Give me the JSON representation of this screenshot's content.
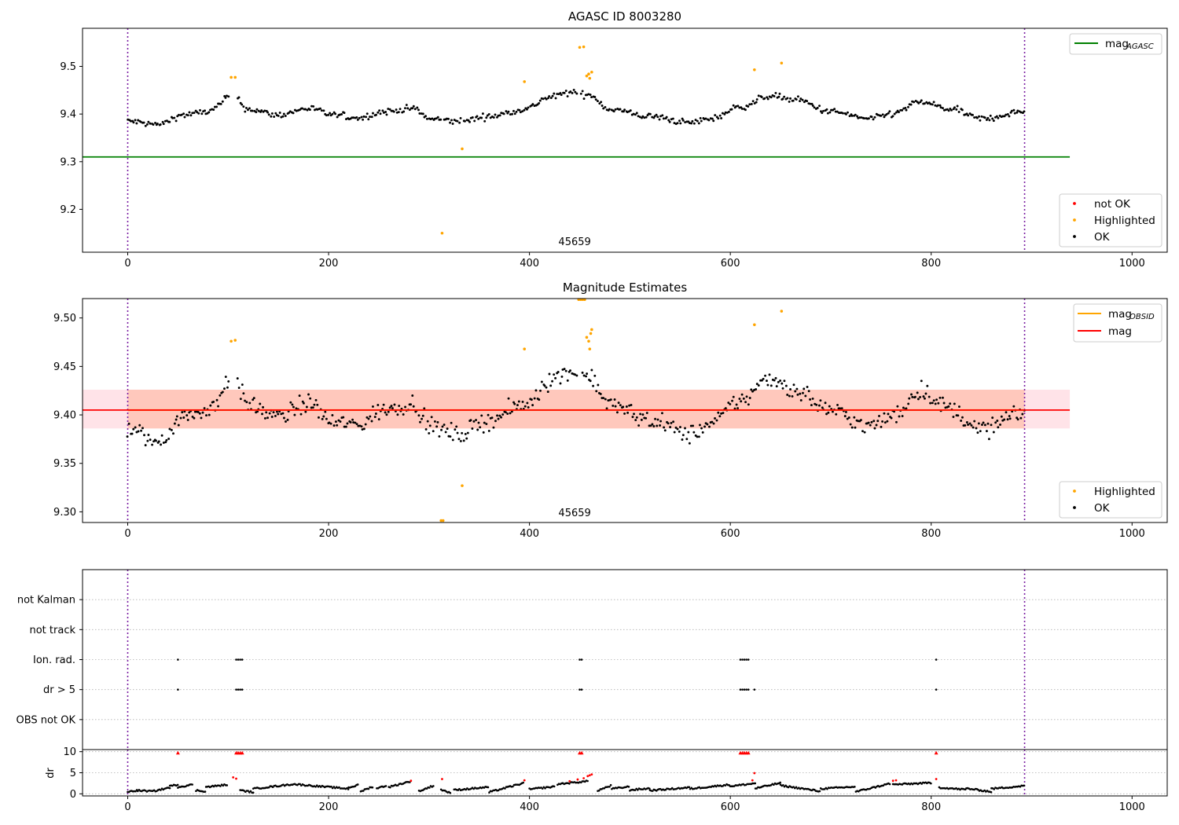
{
  "chart_data": [
    {
      "type": "scatter",
      "title": "AGASC ID 8003280",
      "xlim": [
        -45,
        1035
      ],
      "ylim": [
        9.11,
        9.58
      ],
      "x_ticks": [
        0,
        200,
        400,
        600,
        800,
        1000
      ],
      "y_ticks": [
        9.2,
        9.3,
        9.4,
        9.5
      ],
      "y_tick_labels": [
        "9.2",
        "9.3",
        "9.4",
        "9.5"
      ],
      "obsid_label": "45659",
      "obsid_label_x": 445,
      "vertical_lines_x": [
        0,
        893
      ],
      "mag_agasc": {
        "value": 9.31,
        "x_range": [
          -45,
          938
        ],
        "color": "#008000"
      },
      "legend_lines": [
        {
          "label": "mag",
          "subscript": "AGASC",
          "color": "#008000"
        }
      ],
      "legend_points": [
        {
          "label": "not OK",
          "color": "#ff0000"
        },
        {
          "label": "Highlighted",
          "color": "#ffa500"
        },
        {
          "label": "OK",
          "color": "#000000"
        }
      ],
      "highlighted_points": [
        [
          103,
          9.477
        ],
        [
          107,
          9.477
        ],
        [
          395,
          9.468
        ],
        [
          450,
          9.54
        ],
        [
          454,
          9.541
        ],
        [
          457,
          9.48
        ],
        [
          459,
          9.484
        ],
        [
          460,
          9.475
        ],
        [
          462,
          9.488
        ],
        [
          624,
          9.493
        ],
        [
          651,
          9.507
        ],
        [
          333,
          9.327
        ],
        [
          313,
          9.15
        ]
      ],
      "ok_series": {
        "x_start": 0,
        "x_end": 893,
        "step": 1.5,
        "anchors": [
          [
            0,
            9.385
          ],
          [
            30,
            9.378
          ],
          [
            55,
            9.398
          ],
          [
            80,
            9.405
          ],
          [
            105,
            9.44
          ],
          [
            120,
            9.41
          ],
          [
            150,
            9.398
          ],
          [
            180,
            9.412
          ],
          [
            205,
            9.398
          ],
          [
            230,
            9.392
          ],
          [
            255,
            9.405
          ],
          [
            285,
            9.412
          ],
          [
            300,
            9.39
          ],
          [
            330,
            9.385
          ],
          [
            360,
            9.395
          ],
          [
            395,
            9.41
          ],
          [
            420,
            9.435
          ],
          [
            440,
            9.445
          ],
          [
            460,
            9.44
          ],
          [
            480,
            9.41
          ],
          [
            520,
            9.395
          ],
          [
            560,
            9.382
          ],
          [
            580,
            9.39
          ],
          [
            610,
            9.415
          ],
          [
            640,
            9.438
          ],
          [
            665,
            9.43
          ],
          [
            700,
            9.405
          ],
          [
            740,
            9.39
          ],
          [
            760,
            9.4
          ],
          [
            790,
            9.425
          ],
          [
            820,
            9.41
          ],
          [
            850,
            9.39
          ],
          [
            893,
            9.405
          ]
        ],
        "noise": 0.0085,
        "gaps": [
          [
            102,
            109
          ],
          [
            313,
            313.8
          ],
          [
            333,
            333.8
          ],
          [
            448,
            451
          ]
        ],
        "color": "#000000"
      }
    },
    {
      "type": "scatter",
      "title": "Magnitude Estimates",
      "xlim": [
        -45,
        1035
      ],
      "ylim": [
        9.289,
        9.52
      ],
      "x_ticks": [
        0,
        200,
        400,
        600,
        800,
        1000
      ],
      "y_ticks": [
        9.3,
        9.35,
        9.4,
        9.45,
        9.5
      ],
      "y_tick_labels": [
        "9.30",
        "9.35",
        "9.40",
        "9.45",
        "9.50"
      ],
      "obsid_label": "45659",
      "obsid_label_x": 445,
      "vertical_lines_x": [
        0,
        893
      ],
      "mag": {
        "value": 9.405,
        "band": [
          9.386,
          9.426
        ],
        "x_range": [
          -45,
          938
        ],
        "color": "#ff0000",
        "band_color": "#ffc0cb"
      },
      "mag_obsid": {
        "value": 9.405,
        "band": [
          9.386,
          9.426
        ],
        "x_range": [
          0,
          893
        ],
        "color": "#ffa500",
        "band_color": "#ffa07a"
      },
      "legend_lines": [
        {
          "label": "mag",
          "subscript": "OBSID",
          "color": "#ffa500"
        },
        {
          "label": "mag",
          "subscript": "",
          "color": "#ff0000"
        }
      ],
      "legend_points": [
        {
          "label": "Highlighted",
          "color": "#ffa500"
        },
        {
          "label": "OK",
          "color": "#000000"
        }
      ],
      "highlighted_points": [
        [
          103,
          9.476
        ],
        [
          107,
          9.477
        ],
        [
          395,
          9.468
        ],
        [
          449,
          9.519
        ],
        [
          451,
          9.519
        ],
        [
          453,
          9.519
        ],
        [
          455,
          9.519
        ],
        [
          457,
          9.48
        ],
        [
          459,
          9.476
        ],
        [
          461,
          9.484
        ],
        [
          462,
          9.488
        ],
        [
          460,
          9.468
        ],
        [
          624,
          9.493
        ],
        [
          651,
          9.507
        ],
        [
          333,
          9.327
        ],
        [
          312,
          9.291
        ],
        [
          314,
          9.291
        ]
      ],
      "ok_series": {
        "x_start": 0,
        "x_end": 893,
        "step": 1.5,
        "anchors": [
          [
            0,
            9.385
          ],
          [
            30,
            9.372
          ],
          [
            55,
            9.398
          ],
          [
            80,
            9.405
          ],
          [
            105,
            9.44
          ],
          [
            120,
            9.41
          ],
          [
            150,
            9.398
          ],
          [
            180,
            9.412
          ],
          [
            205,
            9.392
          ],
          [
            230,
            9.39
          ],
          [
            255,
            9.405
          ],
          [
            285,
            9.412
          ],
          [
            300,
            9.388
          ],
          [
            330,
            9.38
          ],
          [
            360,
            9.395
          ],
          [
            395,
            9.41
          ],
          [
            420,
            9.435
          ],
          [
            440,
            9.445
          ],
          [
            460,
            9.44
          ],
          [
            480,
            9.41
          ],
          [
            520,
            9.395
          ],
          [
            560,
            9.38
          ],
          [
            580,
            9.39
          ],
          [
            610,
            9.415
          ],
          [
            640,
            9.438
          ],
          [
            665,
            9.425
          ],
          [
            700,
            9.405
          ],
          [
            740,
            9.388
          ],
          [
            760,
            9.398
          ],
          [
            790,
            9.425
          ],
          [
            820,
            9.405
          ],
          [
            850,
            9.385
          ],
          [
            893,
            9.402
          ]
        ],
        "noise": 0.012,
        "gaps": [
          [
            102,
            109
          ],
          [
            448,
            452
          ]
        ],
        "color": "#000000"
      }
    },
    {
      "type": "scatter",
      "title": "",
      "xlim": [
        -45,
        1035
      ],
      "categories": [
        "not Kalman",
        "not track",
        "Ion. rad.",
        "dr > 5",
        "OBS not OK"
      ],
      "vertical_lines_x": [
        0,
        893
      ],
      "flags": {
        "Ion. rad.": [
          50,
          108,
          110,
          112,
          114,
          450,
          452,
          610,
          612,
          614,
          616,
          618,
          805
        ],
        "dr > 5": [
          50,
          108,
          110,
          112,
          114,
          450,
          452,
          610,
          612,
          614,
          616,
          618,
          624,
          805
        ]
      }
    },
    {
      "type": "scatter",
      "title": "",
      "ylabel": "dr",
      "xlim": [
        -45,
        1035
      ],
      "ylim": [
        -0.5,
        10.5
      ],
      "x_ticks": [
        0,
        200,
        400,
        600,
        800,
        1000
      ],
      "y_ticks": [
        0,
        5,
        10
      ],
      "y_tick_labels": [
        "0",
        "5",
        "10"
      ],
      "vertical_lines_x": [
        0,
        893
      ],
      "red_clipped": [
        50,
        108,
        110,
        112,
        114,
        450,
        452,
        610,
        612,
        614,
        616,
        618,
        805
      ],
      "red_points": [
        [
          105,
          3.9
        ],
        [
          108,
          3.6
        ],
        [
          282,
          3.1
        ],
        [
          313,
          3.5
        ],
        [
          395,
          3.2
        ],
        [
          440,
          3.0
        ],
        [
          448,
          3.4
        ],
        [
          454,
          3.7
        ],
        [
          458,
          4.2
        ],
        [
          460,
          4.4
        ],
        [
          462,
          4.6
        ],
        [
          624,
          4.9
        ],
        [
          622,
          3.2
        ],
        [
          762,
          3.1
        ],
        [
          765,
          3.2
        ],
        [
          805,
          3.5
        ]
      ],
      "ok_series": {
        "x_start": 0,
        "x_end": 893,
        "step": 1.3,
        "cycles": [
          [
            0,
            10,
            0.5,
            0.8
          ],
          [
            10,
            25,
            0.8,
            0.6
          ],
          [
            25,
            42,
            0.6,
            1.5
          ],
          [
            42,
            50,
            1.8,
            2.2
          ],
          [
            50,
            65,
            1.6,
            2.2
          ],
          [
            68,
            78,
            0.8,
            0.6
          ],
          [
            78,
            100,
            1.6,
            2.2
          ],
          [
            112,
            125,
            0.8,
            0.4
          ],
          [
            125,
            165,
            1.2,
            2.3
          ],
          [
            165,
            220,
            2.3,
            1.2
          ],
          [
            220,
            230,
            1.5,
            2.1
          ],
          [
            232,
            245,
            0.6,
            1.8
          ],
          [
            248,
            258,
            1.3,
            2.0
          ],
          [
            260,
            282,
            1.6,
            3.0
          ],
          [
            290,
            305,
            0.6,
            2.0
          ],
          [
            312,
            322,
            1.0,
            0.2
          ],
          [
            325,
            360,
            0.9,
            1.6
          ],
          [
            360,
            395,
            0.4,
            2.6
          ],
          [
            400,
            425,
            1.1,
            1.7
          ],
          [
            428,
            458,
            2.3,
            3.0
          ],
          [
            468,
            482,
            0.8,
            2.0
          ],
          [
            482,
            500,
            1.2,
            1.7
          ],
          [
            500,
            520,
            0.9,
            1.3
          ],
          [
            520,
            560,
            0.8,
            1.5
          ],
          [
            560,
            600,
            1.2,
            2.2
          ],
          [
            600,
            625,
            1.8,
            2.5
          ],
          [
            625,
            650,
            1.3,
            2.6
          ],
          [
            650,
            690,
            2.0,
            0.6
          ],
          [
            690,
            725,
            1.2,
            1.7
          ],
          [
            725,
            760,
            0.5,
            2.5
          ],
          [
            762,
            800,
            2.2,
            2.6
          ],
          [
            808,
            835,
            1.5,
            1.0
          ],
          [
            835,
            860,
            1.3,
            0.5
          ],
          [
            860,
            893,
            1.2,
            1.9
          ]
        ],
        "color": "#000000"
      }
    }
  ]
}
